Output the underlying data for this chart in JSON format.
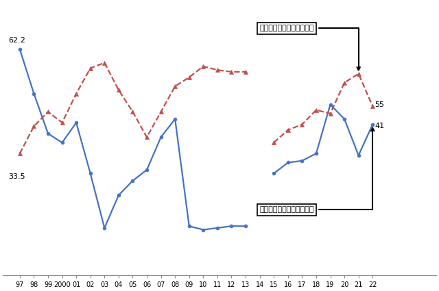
{
  "x_labels": [
    "97",
    "98",
    "99",
    "2000",
    "01",
    "02",
    "03",
    "04",
    "05",
    "06",
    "07",
    "08",
    "09",
    "10",
    "11",
    "12",
    "13",
    "14",
    "15",
    "16",
    "17",
    "18",
    "19",
    "20",
    "21",
    "22"
  ],
  "blue_values": [
    62.2,
    50.0,
    39.0,
    36.5,
    42.0,
    28.0,
    13.0,
    22.0,
    26.0,
    29.0,
    38.0,
    43.0,
    13.5,
    12.5,
    13.0,
    13.5,
    13.5,
    null,
    28.0,
    31.0,
    31.5,
    33.5,
    47.0,
    43.0,
    33.0,
    41.5
  ],
  "red_values": [
    33.5,
    41.0,
    45.0,
    42.0,
    50.0,
    57.0,
    58.5,
    51.0,
    45.0,
    38.0,
    45.0,
    52.0,
    54.5,
    57.5,
    56.5,
    56.0,
    56.0,
    null,
    36.5,
    40.0,
    41.5,
    45.5,
    44.5,
    53.0,
    55.5,
    46.5
  ],
  "blue_color": "#4472C4",
  "red_color": "#C0504D",
  "annotation_red": "初任給を「引き上げた」企",
  "annotation_blue": "初任給を「据え置いた」企",
  "label_62": "62.2",
  "label_33": "33.5",
  "label_55": "55",
  "label_41": "41",
  "bg_color": "#FFFFFF",
  "figsize": [
    6.4,
    4.25
  ],
  "dpi": 100
}
